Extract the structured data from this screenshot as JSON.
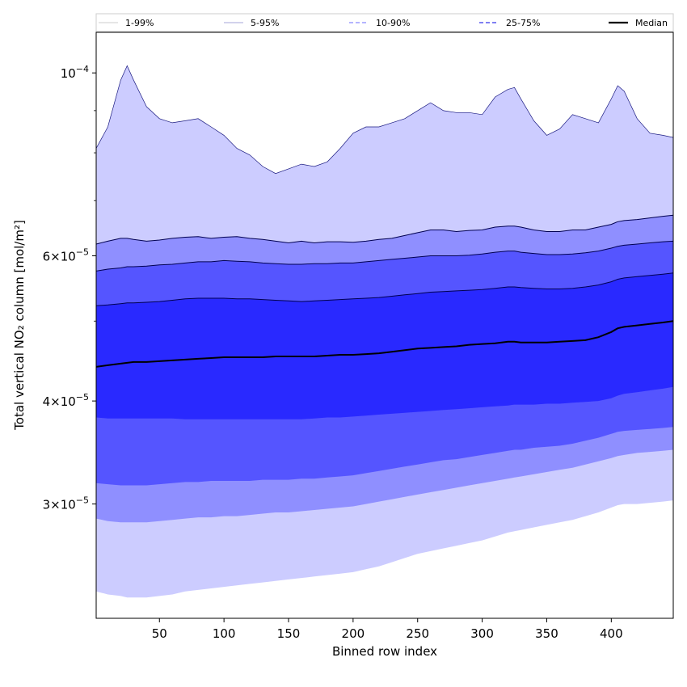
{
  "chart_data": {
    "type": "area",
    "xlabel": "Binned row index",
    "ylabel": "Total vertical NO₂ column [mol/m²]",
    "xlim": [
      1,
      448
    ],
    "ylim": [
      2.18e-05,
      0.000112
    ],
    "y_scale": "log",
    "x_ticks": [
      50,
      100,
      150,
      200,
      250,
      300,
      350,
      400
    ],
    "x_tick_labels": [
      "50",
      "100",
      "150",
      "200",
      "250",
      "300",
      "350",
      "400"
    ],
    "y_ticks": [
      {
        "value": 0.0001,
        "mantissa": "",
        "exponent": "−4"
      },
      {
        "value": 6e-05,
        "mantissa": "6",
        "exponent": "−5"
      },
      {
        "value": 4e-05,
        "mantissa": "4",
        "exponent": "−5"
      },
      {
        "value": 3e-05,
        "mantissa": "3",
        "exponent": "−5"
      }
    ],
    "legend": {
      "placement": "top",
      "entries": [
        "1-99%",
        "5-95%",
        "10-90%",
        "25-75%",
        "Median"
      ]
    },
    "x": [
      1,
      10,
      20,
      25,
      30,
      40,
      50,
      60,
      70,
      80,
      90,
      100,
      110,
      120,
      130,
      140,
      150,
      160,
      170,
      180,
      190,
      200,
      210,
      220,
      230,
      240,
      250,
      260,
      270,
      280,
      290,
      300,
      310,
      320,
      325,
      330,
      340,
      350,
      360,
      370,
      380,
      390,
      400,
      405,
      410,
      420,
      430,
      440,
      448
    ],
    "bands": [
      {
        "name": "1-99%",
        "color": "#ccccff",
        "upper": [
          8.1e-05,
          8.6e-05,
          9.8e-05,
          0.000102,
          9.8e-05,
          9.1e-05,
          8.8e-05,
          8.7e-05,
          8.75e-05,
          8.8e-05,
          8.6e-05,
          8.4e-05,
          8.1e-05,
          7.95e-05,
          7.7e-05,
          7.55e-05,
          7.65e-05,
          7.75e-05,
          7.7e-05,
          7.8e-05,
          8.1e-05,
          8.45e-05,
          8.6e-05,
          8.6e-05,
          8.7e-05,
          8.8e-05,
          9e-05,
          9.2e-05,
          9e-05,
          8.95e-05,
          8.95e-05,
          8.9e-05,
          9.35e-05,
          9.55e-05,
          9.6e-05,
          9.3e-05,
          8.75e-05,
          8.4e-05,
          8.55e-05,
          8.9e-05,
          8.8e-05,
          8.7e-05,
          9.3e-05,
          9.65e-05,
          9.5e-05,
          8.8e-05,
          8.45e-05,
          8.4e-05,
          8.35e-05
        ],
        "lower": [
          2.35e-05,
          2.33e-05,
          2.32e-05,
          2.31e-05,
          2.31e-05,
          2.31e-05,
          2.32e-05,
          2.33e-05,
          2.35e-05,
          2.36e-05,
          2.37e-05,
          2.38e-05,
          2.39e-05,
          2.4e-05,
          2.41e-05,
          2.42e-05,
          2.43e-05,
          2.44e-05,
          2.45e-05,
          2.46e-05,
          2.47e-05,
          2.48e-05,
          2.5e-05,
          2.52e-05,
          2.55e-05,
          2.58e-05,
          2.61e-05,
          2.63e-05,
          2.65e-05,
          2.67e-05,
          2.69e-05,
          2.71e-05,
          2.74e-05,
          2.77e-05,
          2.78e-05,
          2.79e-05,
          2.81e-05,
          2.83e-05,
          2.85e-05,
          2.87e-05,
          2.9e-05,
          2.93e-05,
          2.97e-05,
          2.99e-05,
          3e-05,
          3e-05,
          3.01e-05,
          3.02e-05,
          3.03e-05
        ]
      },
      {
        "name": "5-95%",
        "color": "#8f8fff",
        "upper": [
          6.2e-05,
          6.25e-05,
          6.3e-05,
          6.3e-05,
          6.28e-05,
          6.25e-05,
          6.27e-05,
          6.3e-05,
          6.32e-05,
          6.33e-05,
          6.3e-05,
          6.32e-05,
          6.33e-05,
          6.3e-05,
          6.28e-05,
          6.25e-05,
          6.22e-05,
          6.25e-05,
          6.22e-05,
          6.24e-05,
          6.24e-05,
          6.23e-05,
          6.25e-05,
          6.28e-05,
          6.3e-05,
          6.35e-05,
          6.4e-05,
          6.45e-05,
          6.45e-05,
          6.42e-05,
          6.44e-05,
          6.45e-05,
          6.5e-05,
          6.52e-05,
          6.52e-05,
          6.5e-05,
          6.45e-05,
          6.42e-05,
          6.42e-05,
          6.45e-05,
          6.45e-05,
          6.5e-05,
          6.55e-05,
          6.6e-05,
          6.62e-05,
          6.64e-05,
          6.67e-05,
          6.7e-05,
          6.72e-05
        ],
        "lower": [
          2.88e-05,
          2.86e-05,
          2.85e-05,
          2.85e-05,
          2.85e-05,
          2.85e-05,
          2.86e-05,
          2.87e-05,
          2.88e-05,
          2.89e-05,
          2.89e-05,
          2.9e-05,
          2.9e-05,
          2.91e-05,
          2.92e-05,
          2.93e-05,
          2.93e-05,
          2.94e-05,
          2.95e-05,
          2.96e-05,
          2.97e-05,
          2.98e-05,
          3e-05,
          3.02e-05,
          3.04e-05,
          3.06e-05,
          3.08e-05,
          3.1e-05,
          3.12e-05,
          3.14e-05,
          3.16e-05,
          3.18e-05,
          3.2e-05,
          3.22e-05,
          3.23e-05,
          3.24e-05,
          3.26e-05,
          3.28e-05,
          3.3e-05,
          3.32e-05,
          3.35e-05,
          3.38e-05,
          3.41e-05,
          3.43e-05,
          3.44e-05,
          3.46e-05,
          3.47e-05,
          3.48e-05,
          3.49e-05
        ]
      },
      {
        "name": "10-90%",
        "color": "#5555ff",
        "upper": [
          5.75e-05,
          5.78e-05,
          5.8e-05,
          5.82e-05,
          5.82e-05,
          5.83e-05,
          5.85e-05,
          5.86e-05,
          5.88e-05,
          5.9e-05,
          5.9e-05,
          5.92e-05,
          5.91e-05,
          5.9e-05,
          5.88e-05,
          5.87e-05,
          5.86e-05,
          5.86e-05,
          5.87e-05,
          5.87e-05,
          5.88e-05,
          5.88e-05,
          5.9e-05,
          5.92e-05,
          5.94e-05,
          5.96e-05,
          5.98e-05,
          6e-05,
          6e-05,
          6e-05,
          6.01e-05,
          6.03e-05,
          6.06e-05,
          6.08e-05,
          6.08e-05,
          6.06e-05,
          6.04e-05,
          6.02e-05,
          6.02e-05,
          6.03e-05,
          6.05e-05,
          6.08e-05,
          6.13e-05,
          6.16e-05,
          6.18e-05,
          6.2e-05,
          6.22e-05,
          6.24e-05,
          6.25e-05
        ],
        "lower": [
          3.18e-05,
          3.17e-05,
          3.16e-05,
          3.16e-05,
          3.16e-05,
          3.16e-05,
          3.17e-05,
          3.18e-05,
          3.19e-05,
          3.19e-05,
          3.2e-05,
          3.2e-05,
          3.2e-05,
          3.2e-05,
          3.21e-05,
          3.21e-05,
          3.21e-05,
          3.22e-05,
          3.22e-05,
          3.23e-05,
          3.24e-05,
          3.25e-05,
          3.27e-05,
          3.29e-05,
          3.31e-05,
          3.33e-05,
          3.35e-05,
          3.37e-05,
          3.39e-05,
          3.4e-05,
          3.42e-05,
          3.44e-05,
          3.46e-05,
          3.48e-05,
          3.49e-05,
          3.49e-05,
          3.51e-05,
          3.52e-05,
          3.53e-05,
          3.55e-05,
          3.58e-05,
          3.61e-05,
          3.65e-05,
          3.67e-05,
          3.68e-05,
          3.69e-05,
          3.7e-05,
          3.71e-05,
          3.72e-05
        ]
      },
      {
        "name": "25-75%",
        "color": "#2929ff",
        "upper": [
          5.22e-05,
          5.23e-05,
          5.25e-05,
          5.26e-05,
          5.26e-05,
          5.27e-05,
          5.28e-05,
          5.3e-05,
          5.32e-05,
          5.33e-05,
          5.33e-05,
          5.33e-05,
          5.32e-05,
          5.32e-05,
          5.31e-05,
          5.3e-05,
          5.29e-05,
          5.28e-05,
          5.29e-05,
          5.3e-05,
          5.31e-05,
          5.32e-05,
          5.33e-05,
          5.34e-05,
          5.36e-05,
          5.38e-05,
          5.4e-05,
          5.42e-05,
          5.43e-05,
          5.44e-05,
          5.45e-05,
          5.46e-05,
          5.48e-05,
          5.5e-05,
          5.5e-05,
          5.49e-05,
          5.48e-05,
          5.47e-05,
          5.47e-05,
          5.48e-05,
          5.5e-05,
          5.53e-05,
          5.58e-05,
          5.62e-05,
          5.64e-05,
          5.66e-05,
          5.68e-05,
          5.7e-05,
          5.72e-05
        ],
        "lower": [
          3.82e-05,
          3.81e-05,
          3.81e-05,
          3.81e-05,
          3.81e-05,
          3.81e-05,
          3.81e-05,
          3.81e-05,
          3.8e-05,
          3.8e-05,
          3.8e-05,
          3.8e-05,
          3.8e-05,
          3.8e-05,
          3.8e-05,
          3.8e-05,
          3.8e-05,
          3.8e-05,
          3.81e-05,
          3.82e-05,
          3.82e-05,
          3.83e-05,
          3.84e-05,
          3.85e-05,
          3.86e-05,
          3.87e-05,
          3.88e-05,
          3.89e-05,
          3.9e-05,
          3.91e-05,
          3.92e-05,
          3.93e-05,
          3.94e-05,
          3.95e-05,
          3.96e-05,
          3.96e-05,
          3.96e-05,
          3.97e-05,
          3.97e-05,
          3.98e-05,
          3.99e-05,
          4e-05,
          4.03e-05,
          4.06e-05,
          4.08e-05,
          4.1e-05,
          4.12e-05,
          4.14e-05,
          4.16e-05
        ]
      }
    ],
    "median": {
      "name": "Median",
      "color": "#000000",
      "values": [
        4.4e-05,
        4.42e-05,
        4.44e-05,
        4.45e-05,
        4.46e-05,
        4.46e-05,
        4.47e-05,
        4.48e-05,
        4.49e-05,
        4.5e-05,
        4.51e-05,
        4.52e-05,
        4.52e-05,
        4.52e-05,
        4.52e-05,
        4.53e-05,
        4.53e-05,
        4.53e-05,
        4.53e-05,
        4.54e-05,
        4.55e-05,
        4.55e-05,
        4.56e-05,
        4.57e-05,
        4.59e-05,
        4.61e-05,
        4.63e-05,
        4.64e-05,
        4.65e-05,
        4.66e-05,
        4.68e-05,
        4.69e-05,
        4.7e-05,
        4.72e-05,
        4.72e-05,
        4.71e-05,
        4.71e-05,
        4.71e-05,
        4.72e-05,
        4.73e-05,
        4.74e-05,
        4.78e-05,
        4.85e-05,
        4.9e-05,
        4.92e-05,
        4.94e-05,
        4.96e-05,
        4.98e-05,
        5e-05
      ]
    }
  }
}
